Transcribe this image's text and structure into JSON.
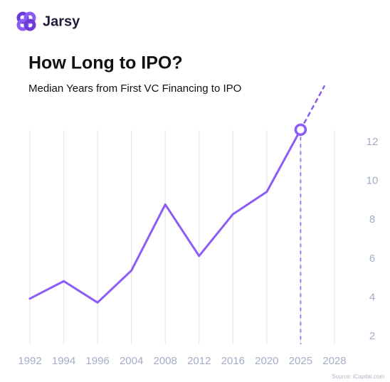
{
  "brand": "Jarsy",
  "chart_data": {
    "type": "line",
    "title": "How Long to IPO?",
    "subtitle": "Median Years from First VC Financing to IPO",
    "source": "Source: iCapital.com",
    "categories": [
      "1992",
      "1994",
      "1996",
      "2004",
      "2008",
      "2012",
      "2016",
      "2020",
      "2025",
      "2028"
    ],
    "series": [
      {
        "name": "Median years",
        "color": "#8b5cf6",
        "values": [
          3.95,
          4.85,
          3.75,
          5.4,
          8.8,
          6.15,
          8.3,
          9.45,
          12.65,
          null
        ]
      }
    ],
    "ylim": [
      1.6,
      14.2
    ],
    "yticks": [
      2,
      4,
      6,
      8,
      10,
      12
    ],
    "grid": "x",
    "yaxis_side": "right",
    "highlight_last": true
  }
}
